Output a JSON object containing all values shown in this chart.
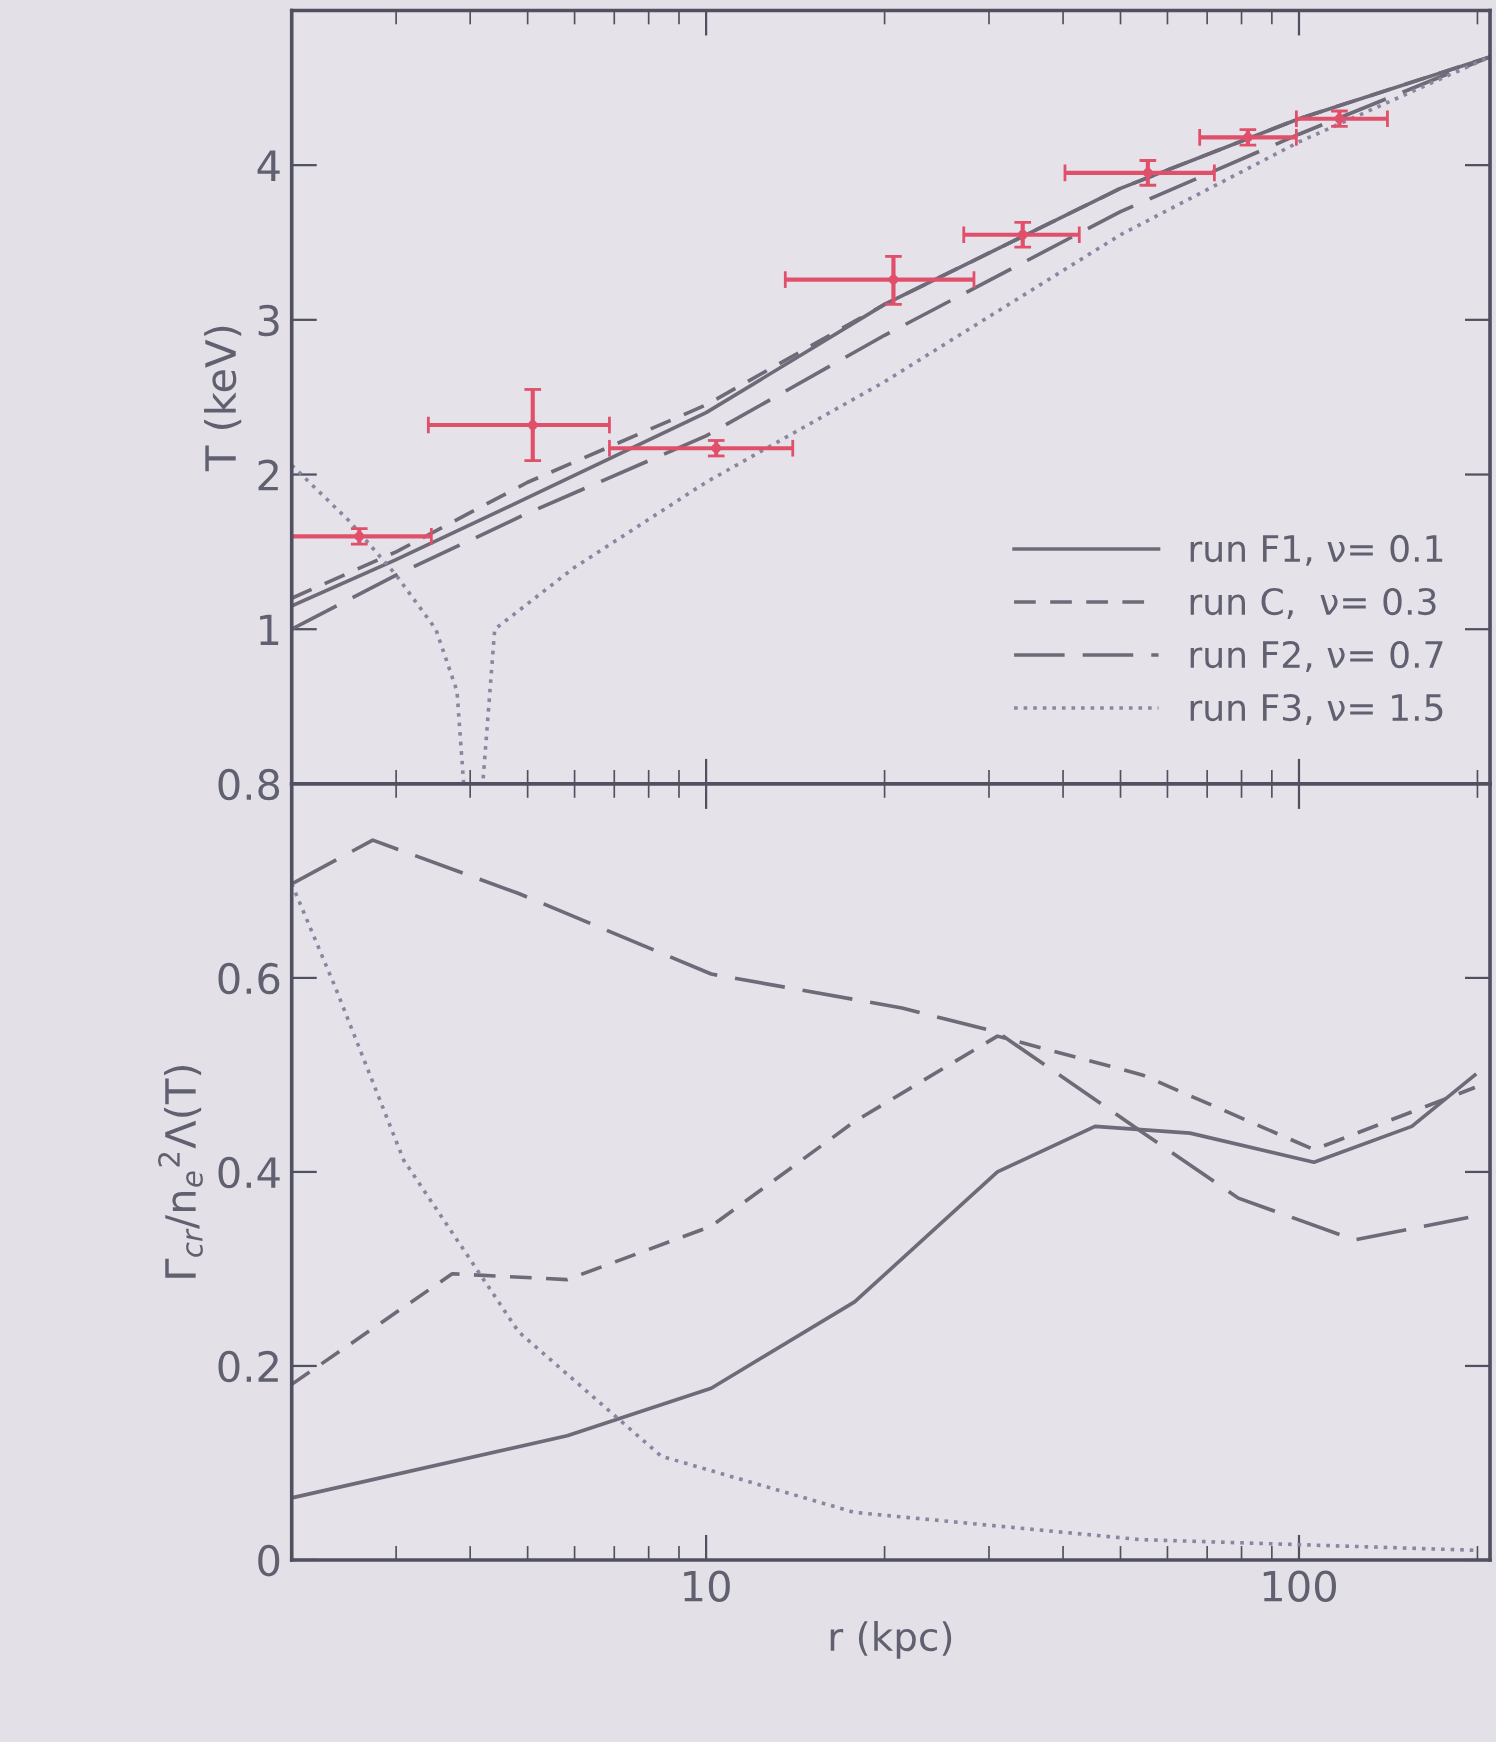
{
  "chart_data": [
    {
      "type": "line",
      "ylabel": "T (keV)",
      "xlim": [
        2,
        210
      ],
      "ylim": [
        0,
        5
      ],
      "log": "x",
      "xticks": [
        10,
        100
      ],
      "yticks": [
        1,
        2,
        3,
        4
      ],
      "tick_labels": "y",
      "legend": "bottom right",
      "grid": false,
      "series": [
        {
          "name": "run F1, ν= 0.1",
          "color": "#6e6a78",
          "line_style": "solid",
          "x": [
            2,
            3,
            5,
            10,
            20,
            50,
            100,
            210
          ],
          "values": [
            1.15,
            1.45,
            1.85,
            2.4,
            3.1,
            3.85,
            4.3,
            4.7
          ]
        },
        {
          "name": "run C,  ν= 0.3",
          "color": "#6e6a78",
          "line_style": "dashed",
          "x": [
            2,
            3,
            5,
            10,
            20,
            50,
            100,
            210
          ],
          "values": [
            1.2,
            1.5,
            1.95,
            2.45,
            3.1,
            3.85,
            4.3,
            4.7
          ]
        },
        {
          "name": "run F2, ν= 0.7",
          "color": "#6e6a78",
          "line_style": "longdashed",
          "x": [
            2,
            3,
            5,
            10,
            20,
            50,
            100,
            210
          ],
          "values": [
            1.0,
            1.35,
            1.75,
            2.25,
            2.9,
            3.7,
            4.2,
            4.7
          ]
        },
        {
          "name": "run F3, ν= 1.5",
          "color": "#8a86a0",
          "line_style": "dotted",
          "x": [
            2,
            2.5,
            3,
            3.5,
            3.8,
            3.9,
            4.2,
            4.4,
            6,
            10,
            20,
            50,
            100,
            210
          ],
          "values": [
            2.06,
            1.7,
            1.35,
            1.0,
            0.6,
            0,
            0,
            1.0,
            1.4,
            1.95,
            2.6,
            3.55,
            4.15,
            4.7
          ]
        },
        {
          "type": "scatter",
          "marker": "none",
          "color": "#e0506a",
          "x": [
            2.6,
            5.1,
            10.4,
            20.7,
            34.2,
            55.6,
            82,
            117
          ],
          "values": [
            1.6,
            2.32,
            2.17,
            3.26,
            3.55,
            3.95,
            4.18,
            4.3
          ],
          "errors": [
            0.05,
            [
              2.09,
              2.55
            ],
            0.05,
            [
              3.1,
              3.41
            ],
            0.08,
            0.08,
            0.05,
            0.05
          ],
          "xerrors": [
            [
              1.98,
              3.44
            ],
            [
              3.4,
              6.87
            ],
            [
              6.87,
              14.0
            ],
            [
              13.6,
              28.3
            ],
            [
              27.2,
              42.6
            ],
            [
              40.3,
              72
            ],
            [
              68,
              99
            ],
            [
              99,
              141
            ]
          ]
        }
      ]
    },
    {
      "type": "line",
      "xlabel": "r (kpc)",
      "ylabel": "Γ$_{cr}$/n$_{e}$$^{2}$Λ(T)",
      "xlim": [
        2,
        210
      ],
      "ylim": [
        0,
        0.8
      ],
      "log": "x",
      "xticks": [
        10,
        100
      ],
      "yticks": [
        0,
        0.2,
        0.4,
        0.6,
        0.8
      ],
      "grid": false,
      "series": [
        {
          "color": "#6e6a78",
          "line_style": "solid",
          "x": [
            2,
            5.83,
            10.2,
            17.8,
            31,
            45.3,
            65.5,
            106,
            155,
            198
          ],
          "values": [
            0.064,
            0.128,
            0.177,
            0.266,
            0.4,
            0.447,
            0.44,
            0.41,
            0.447,
            0.5
          ]
        },
        {
          "color": "#6e6a78",
          "line_style": "dashed",
          "x": [
            2,
            3.73,
            5.83,
            10.2,
            17.8,
            31,
            54.4,
            106,
            198
          ],
          "values": [
            0.181,
            0.295,
            0.289,
            0.344,
            0.452,
            0.54,
            0.5,
            0.423,
            0.487
          ]
        },
        {
          "color": "#6e6a78",
          "line_style": "longdashed",
          "x": [
            2,
            2.74,
            4.83,
            10.2,
            21.4,
            31,
            54.4,
            79,
            124,
            193
          ],
          "values": [
            0.697,
            0.742,
            0.687,
            0.604,
            0.569,
            0.544,
            0.441,
            0.373,
            0.33,
            0.353
          ]
        },
        {
          "color": "#8a86a0",
          "line_style": "dotted",
          "x": [
            2,
            2.37,
            3.09,
            4.83,
            8.4,
            17.8,
            54,
            198
          ],
          "values": [
            0.697,
            0.59,
            0.412,
            0.235,
            0.107,
            0.049,
            0.021,
            0.01
          ]
        }
      ]
    }
  ]
}
